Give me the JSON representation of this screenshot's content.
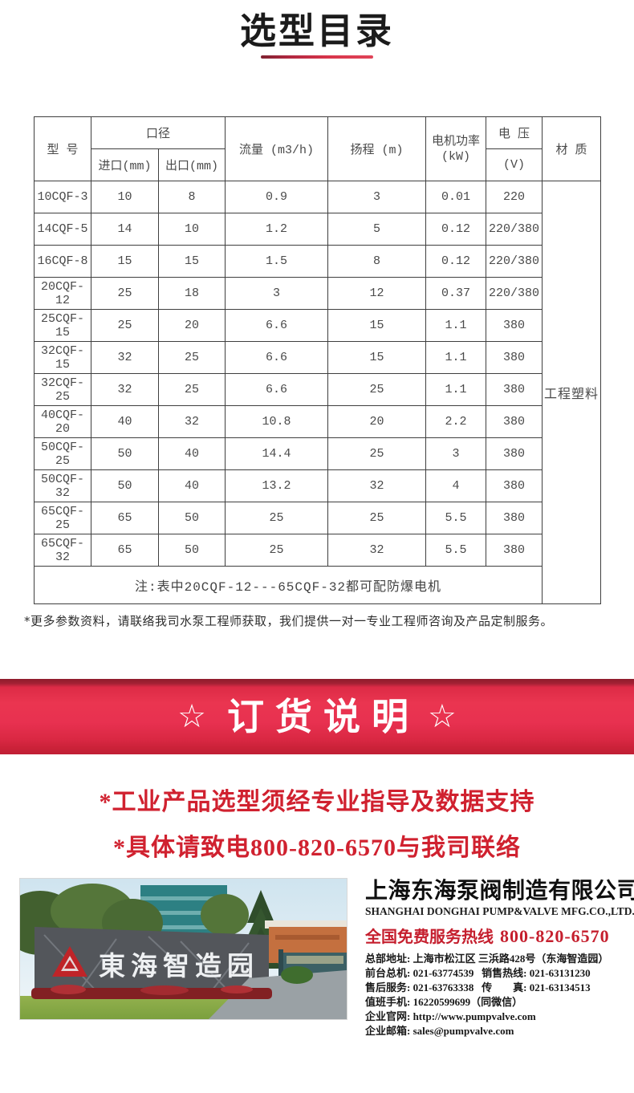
{
  "page": {
    "title": "选型目录"
  },
  "table": {
    "headers": {
      "model": "型 号",
      "caliber": "口径",
      "inlet": "进口(mm)",
      "outlet": "出口(mm)",
      "flow": "流量 (m3/h)",
      "head": "扬程 (m)",
      "power_line1": "电机功率",
      "power_line2": "(kW)",
      "voltage": "电 压",
      "voltage_unit": "(V)",
      "material": "材 质"
    },
    "rows": [
      {
        "model": "10CQF-3",
        "inlet": "10",
        "outlet": "8",
        "flow": "0.9",
        "head": "3",
        "power": "0.01",
        "voltage": "220"
      },
      {
        "model": "14CQF-5",
        "inlet": "14",
        "outlet": "10",
        "flow": "1.2",
        "head": "5",
        "power": "0.12",
        "voltage": "220/380"
      },
      {
        "model": "16CQF-8",
        "inlet": "15",
        "outlet": "15",
        "flow": "1.5",
        "head": "8",
        "power": "0.12",
        "voltage": "220/380"
      },
      {
        "model": "20CQF-12",
        "inlet": "25",
        "outlet": "18",
        "flow": "3",
        "head": "12",
        "power": "0.37",
        "voltage": "220/380"
      },
      {
        "model": "25CQF-15",
        "inlet": "25",
        "outlet": "20",
        "flow": "6.6",
        "head": "15",
        "power": "1.1",
        "voltage": "380"
      },
      {
        "model": "32CQF-15",
        "inlet": "32",
        "outlet": "25",
        "flow": "6.6",
        "head": "15",
        "power": "1.1",
        "voltage": "380"
      },
      {
        "model": "32CQF-25",
        "inlet": "32",
        "outlet": "25",
        "flow": "6.6",
        "head": "25",
        "power": "1.1",
        "voltage": "380"
      },
      {
        "model": "40CQF-20",
        "inlet": "40",
        "outlet": "32",
        "flow": "10.8",
        "head": "20",
        "power": "2.2",
        "voltage": "380"
      },
      {
        "model": "50CQF-25",
        "inlet": "50",
        "outlet": "40",
        "flow": "14.4",
        "head": "25",
        "power": "3",
        "voltage": "380"
      },
      {
        "model": "50CQF-32",
        "inlet": "50",
        "outlet": "40",
        "flow": "13.2",
        "head": "32",
        "power": "4",
        "voltage": "380"
      },
      {
        "model": "65CQF-25",
        "inlet": "65",
        "outlet": "50",
        "flow": "25",
        "head": "25",
        "power": "5.5",
        "voltage": "380"
      },
      {
        "model": "65CQF-32",
        "inlet": "65",
        "outlet": "50",
        "flow": "25",
        "head": "32",
        "power": "5.5",
        "voltage": "380"
      }
    ],
    "material_value": "工程塑料",
    "note": "注:表中20CQF-12---65CQF-32都可配防爆电机"
  },
  "footnote": "*更多参数资料，请联络我司水泵工程师获取，我们提供一对一专业工程师咨询及产品定制服务。",
  "banner": {
    "star": "☆",
    "title": "订货说明"
  },
  "notice": {
    "line1": "*工业产品选型须经专业指导及数据支持",
    "line2": "*具体请致电800-820-6570与我司联络"
  },
  "company": {
    "photo_sign": "東海智造园",
    "name_cn": "上海东海泵阀制造有限公司",
    "name_en": "SHANGHAI DONGHAI PUMP&VALVE MFG.CO.,LTD.",
    "hotline_label": "全国免费服务热线",
    "hotline_number": "800-820-6570",
    "details": [
      "总部地址: 上海市松江区 三浜路428号（东海智造园）",
      "前台总机: 021-63774539   销售热线: 021-63131230",
      "售后服务: 021-63763338   传　　真: 021-63134513",
      "值班手机: 16220599699（同微信）",
      "企业官网: http://www.pumpvalve.com",
      "企业邮箱: sales@pumpvalve.com"
    ]
  },
  "colors": {
    "accent_red": "#d0212f",
    "banner_red": "#e83150",
    "hotline_red": "#c51f2e",
    "table_border": "#3f3f3f"
  }
}
